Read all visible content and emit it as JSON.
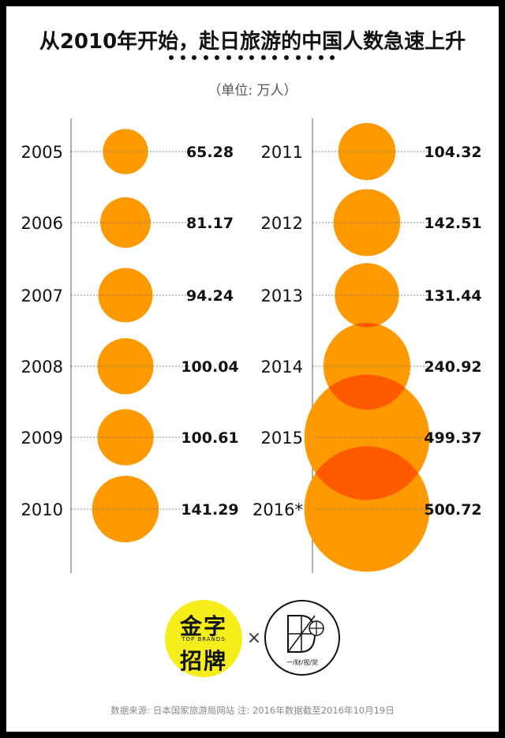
{
  "title": "从2010年开始，赴日旅游的中国人数急速上升",
  "unit": "（单位: 万人）",
  "footer": "数据来源: 日本国家旅游局网站  注: 2016年数据截至2016年10月19日",
  "logo_left": {
    "line1": "金字",
    "line2": "TOP BRANDS",
    "line3": "招牌"
  },
  "logo_right": {
    "caption": "一/财/视/觉"
  },
  "times_symbol": "×",
  "colors": {
    "bubble": "#ff9900",
    "overlap": "#ff5a00",
    "axis": "#777777",
    "text": "#111111"
  },
  "chart_data": {
    "type": "bubble",
    "unit": "万人",
    "columns": [
      {
        "points": [
          {
            "year": "2005",
            "value": 65.28,
            "label": "65.28"
          },
          {
            "year": "2006",
            "value": 81.17,
            "label": "81.17"
          },
          {
            "year": "2007",
            "value": 94.24,
            "label": "94.24"
          },
          {
            "year": "2008",
            "value": 100.04,
            "label": "100.04"
          },
          {
            "year": "2009",
            "value": 100.61,
            "label": "100.61"
          },
          {
            "year": "2010",
            "value": 141.29,
            "label": "141.29"
          }
        ]
      },
      {
        "points": [
          {
            "year": "2011",
            "value": 104.32,
            "label": "104.32"
          },
          {
            "year": "2012",
            "value": 142.51,
            "label": "142.51"
          },
          {
            "year": "2013",
            "value": 131.44,
            "label": "131.44"
          },
          {
            "year": "2014",
            "value": 240.92,
            "label": "240.92"
          },
          {
            "year": "2015",
            "value": 499.37,
            "label": "499.37"
          },
          {
            "year": "2016*",
            "value": 500.72,
            "label": "500.72"
          }
        ]
      }
    ]
  }
}
